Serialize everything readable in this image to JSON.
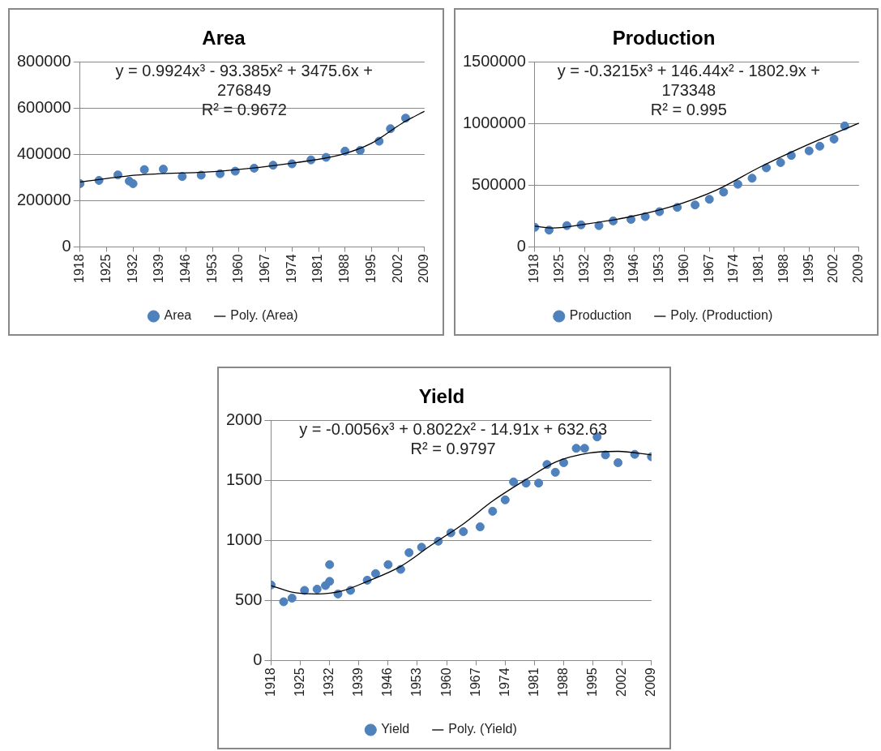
{
  "chart_data": [
    {
      "type": "scatter",
      "title": "Area",
      "xlim": [
        1918,
        2009
      ],
      "xticks": [
        1918,
        1925,
        1932,
        1939,
        1946,
        1953,
        1960,
        1967,
        1974,
        1981,
        1988,
        1995,
        2002,
        2009
      ],
      "ylim": [
        0,
        800000
      ],
      "yticks": [
        0,
        200000,
        400000,
        600000,
        800000
      ],
      "grid": "y",
      "legend": "bottom",
      "annotations": [
        "y = 0.9924x³ - 93.385x² + 3475.6x + 276849",
        "R² = 0.9672"
      ],
      "series": [
        {
          "name": "Area",
          "marker": "circle",
          "color": "#4f81bd",
          "x": [
            1918,
            1923,
            1928,
            1931,
            1932,
            1935,
            1940,
            1945,
            1950,
            1955,
            1959,
            1964,
            1969,
            1974,
            1979,
            1983,
            1988,
            1992,
            1997,
            2000,
            2004
          ],
          "values": [
            274000,
            288000,
            312000,
            285000,
            274000,
            335000,
            337000,
            305000,
            311000,
            317000,
            328000,
            341000,
            354000,
            360000,
            377000,
            388000,
            415000,
            418000,
            458000,
            512000,
            558000
          ]
        },
        {
          "name": "Poly. (Area)",
          "type": "line",
          "marker": "none",
          "color": "#000000",
          "x": [
            1918,
            1933,
            1955,
            1975,
            1987,
            1995,
            2003,
            2009
          ],
          "values": [
            281000,
            311000,
            328000,
            365000,
            400000,
            449000,
            535000,
            588000
          ]
        }
      ]
    },
    {
      "type": "scatter",
      "title": "Production",
      "xlim": [
        1918,
        2009
      ],
      "xticks": [
        1918,
        1925,
        1932,
        1939,
        1946,
        1953,
        1960,
        1967,
        1974,
        1981,
        1988,
        1995,
        2002,
        2009
      ],
      "ylim": [
        0,
        1500000
      ],
      "yticks": [
        0,
        500000,
        1000000,
        1500000
      ],
      "grid": "y",
      "legend": "bottom",
      "annotations": [
        "y = -0.3215x³ + 146.44x² - 1802.9x + 173348",
        "R² = 0.995"
      ],
      "series": [
        {
          "name": "Production",
          "marker": "circle",
          "color": "#4f81bd",
          "x": [
            1918,
            1922,
            1927,
            1931,
            1936,
            1940,
            1945,
            1949,
            1953,
            1958,
            1963,
            1967,
            1971,
            1975,
            1979,
            1983,
            1987,
            1990,
            1995,
            1998,
            2002,
            2005
          ],
          "values": [
            159000,
            136000,
            173000,
            179000,
            173000,
            211000,
            223000,
            246000,
            286000,
            321000,
            341000,
            387000,
            445000,
            509000,
            558000,
            642000,
            685000,
            743000,
            780000,
            818000,
            876000,
            983000
          ]
        },
        {
          "name": "Poly. (Production)",
          "type": "line",
          "marker": "none",
          "color": "#000000",
          "x": [
            1918,
            1923,
            1933,
            1944,
            1956,
            1969,
            1981,
            1993,
            2009
          ],
          "values": [
            168000,
            153000,
            188000,
            240000,
            324000,
            462000,
            645000,
            809000,
            1006000
          ]
        }
      ]
    },
    {
      "type": "scatter",
      "title": "Yield",
      "xlim": [
        1918,
        2009
      ],
      "xticks": [
        1918,
        1925,
        1932,
        1939,
        1946,
        1953,
        1960,
        1967,
        1974,
        1981,
        1988,
        1995,
        2002,
        2009
      ],
      "ylim": [
        0,
        2000
      ],
      "yticks": [
        0,
        500,
        1000,
        1500,
        2000
      ],
      "grid": "y",
      "legend": "bottom",
      "annotations": [
        "y = -0.0056x³ + 0.8022x² - 14.91x + 632.63",
        "R² = 0.9797"
      ],
      "series": [
        {
          "name": "Yield",
          "marker": "circle",
          "color": "#4f81bd",
          "x": [
            1918,
            1921,
            1923,
            1926,
            1929,
            1931,
            1932,
            1932,
            1934,
            1937,
            1941,
            1943,
            1946,
            1949,
            1951,
            1954,
            1958,
            1961,
            1964,
            1968,
            1971,
            1974,
            1976,
            1979,
            1982,
            1984,
            1986,
            1988,
            1991,
            1993,
            1996,
            1998,
            2001,
            2005,
            2009
          ],
          "values": [
            630,
            490,
            520,
            585,
            595,
            625,
            800,
            660,
            555,
            585,
            670,
            725,
            800,
            760,
            900,
            945,
            995,
            1065,
            1075,
            1115,
            1245,
            1340,
            1490,
            1480,
            1480,
            1635,
            1570,
            1650,
            1770,
            1770,
            1865,
            1715,
            1650,
            1720,
            1700
          ]
        },
        {
          "name": "Poly. (Yield)",
          "type": "line",
          "marker": "none",
          "color": "#000000",
          "x": [
            1918,
            1923,
            1929,
            1935,
            1941,
            1949,
            1956,
            1964,
            1971,
            1979,
            1986,
            1994,
            2001,
            2009
          ],
          "values": [
            625,
            570,
            555,
            580,
            660,
            785,
            955,
            1140,
            1330,
            1510,
            1655,
            1730,
            1745,
            1715
          ]
        }
      ]
    }
  ]
}
